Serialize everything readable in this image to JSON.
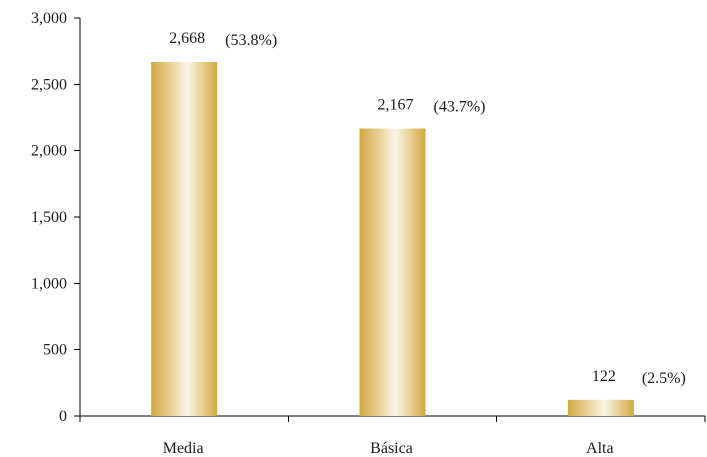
{
  "chart_data": {
    "type": "bar",
    "title": "",
    "xlabel": "",
    "ylabel": "",
    "categories": [
      "Media",
      "Básica",
      "Alta"
    ],
    "values": [
      2668,
      2167,
      122
    ],
    "value_labels": [
      "2,668",
      "2,167",
      "122"
    ],
    "percent_labels": [
      "(53.8%)",
      "(43.7%)",
      "(2.5%)"
    ],
    "ylim": [
      0,
      3000
    ],
    "yticks": [
      0,
      500,
      1000,
      1500,
      2000,
      2500,
      3000
    ],
    "ytick_labels": [
      "0",
      "500",
      "1,000",
      "1,500",
      "2,000",
      "2,500",
      "3,000"
    ],
    "grid": false,
    "legend": "none",
    "bar_color_dark": "#d2a83e",
    "bar_color_light": "#fbf5e6"
  }
}
